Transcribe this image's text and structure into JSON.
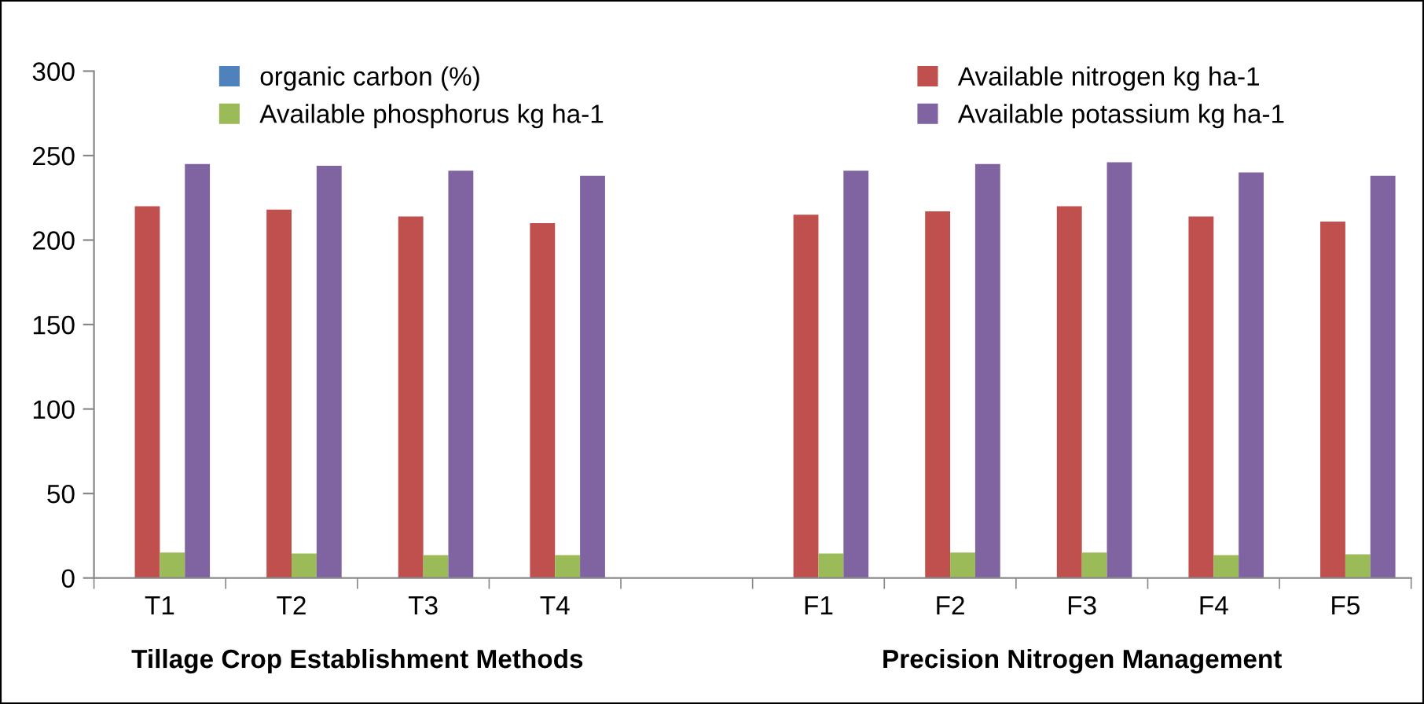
{
  "chart_data": {
    "type": "bar",
    "categories": [
      "T1",
      "T2",
      "T3",
      "T4",
      null,
      "F1",
      "F2",
      "F3",
      "F4",
      "F5"
    ],
    "series": [
      {
        "name": "organic carbon (%)",
        "color": "#4f81bd",
        "values": [
          0,
          0,
          0,
          0,
          null,
          0,
          0,
          0,
          0,
          0
        ]
      },
      {
        "name": "Available nitrogen kg ha-1",
        "color": "#c0504d",
        "values": [
          220,
          218,
          214,
          210,
          null,
          215,
          217,
          220,
          214,
          211
        ]
      },
      {
        "name": "Available phosphorus kg ha-1",
        "color": "#9bbb59",
        "values": [
          15,
          14.5,
          13.5,
          13.5,
          null,
          14.5,
          15,
          15,
          13.5,
          14
        ]
      },
      {
        "name": "Available potassium kg ha-1",
        "color": "#8064a2",
        "values": [
          245,
          244,
          241,
          238,
          null,
          241,
          245,
          246,
          240,
          238
        ]
      }
    ],
    "ylim": [
      0,
      300
    ],
    "yticks": [
      0,
      50,
      100,
      150,
      200,
      250,
      300
    ],
    "annotations": [
      "Tillage Crop Establishment Methods",
      "Precision Nitrogen Management"
    ],
    "legend": "top",
    "grid": false
  }
}
